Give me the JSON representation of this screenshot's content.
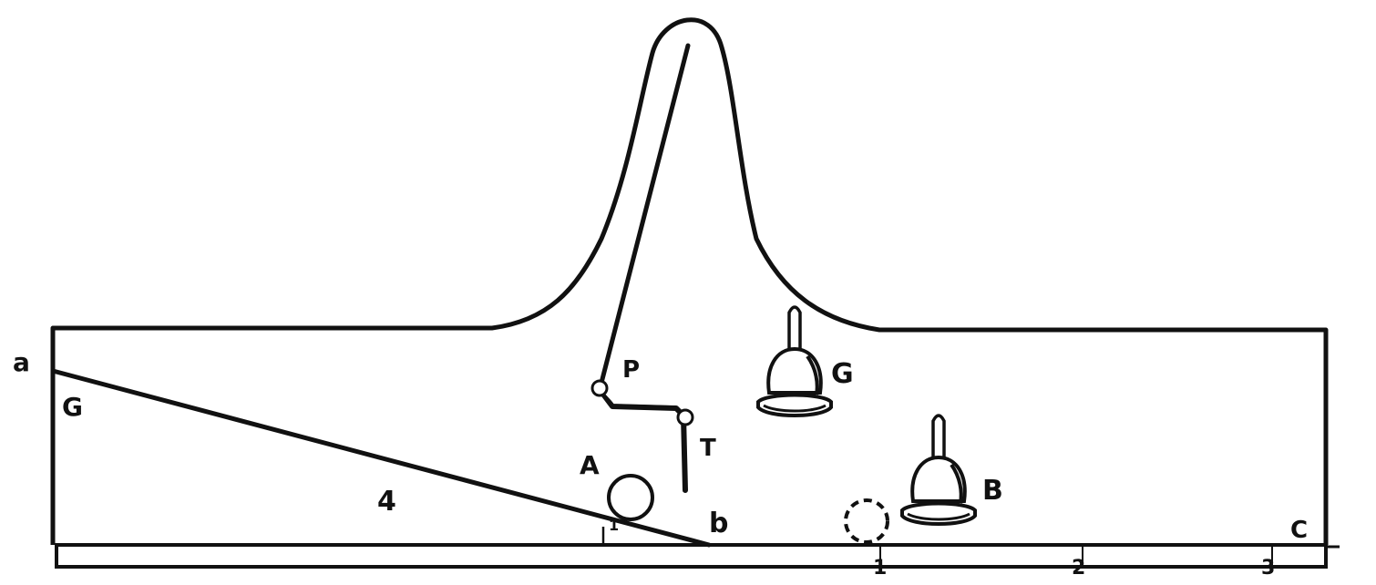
{
  "labels": {
    "a": "a",
    "g": "G",
    "four": "4",
    "a_ball": "A",
    "one_small": "1",
    "b_lower": "b",
    "p": "P",
    "t": "T",
    "g_bell": "G",
    "b_bell": "B",
    "c": "C",
    "scale_1": "1",
    "scale_2": "2",
    "scale_3": "3"
  },
  "colors": {
    "ink": "#111111",
    "paper": "#ffffff"
  }
}
